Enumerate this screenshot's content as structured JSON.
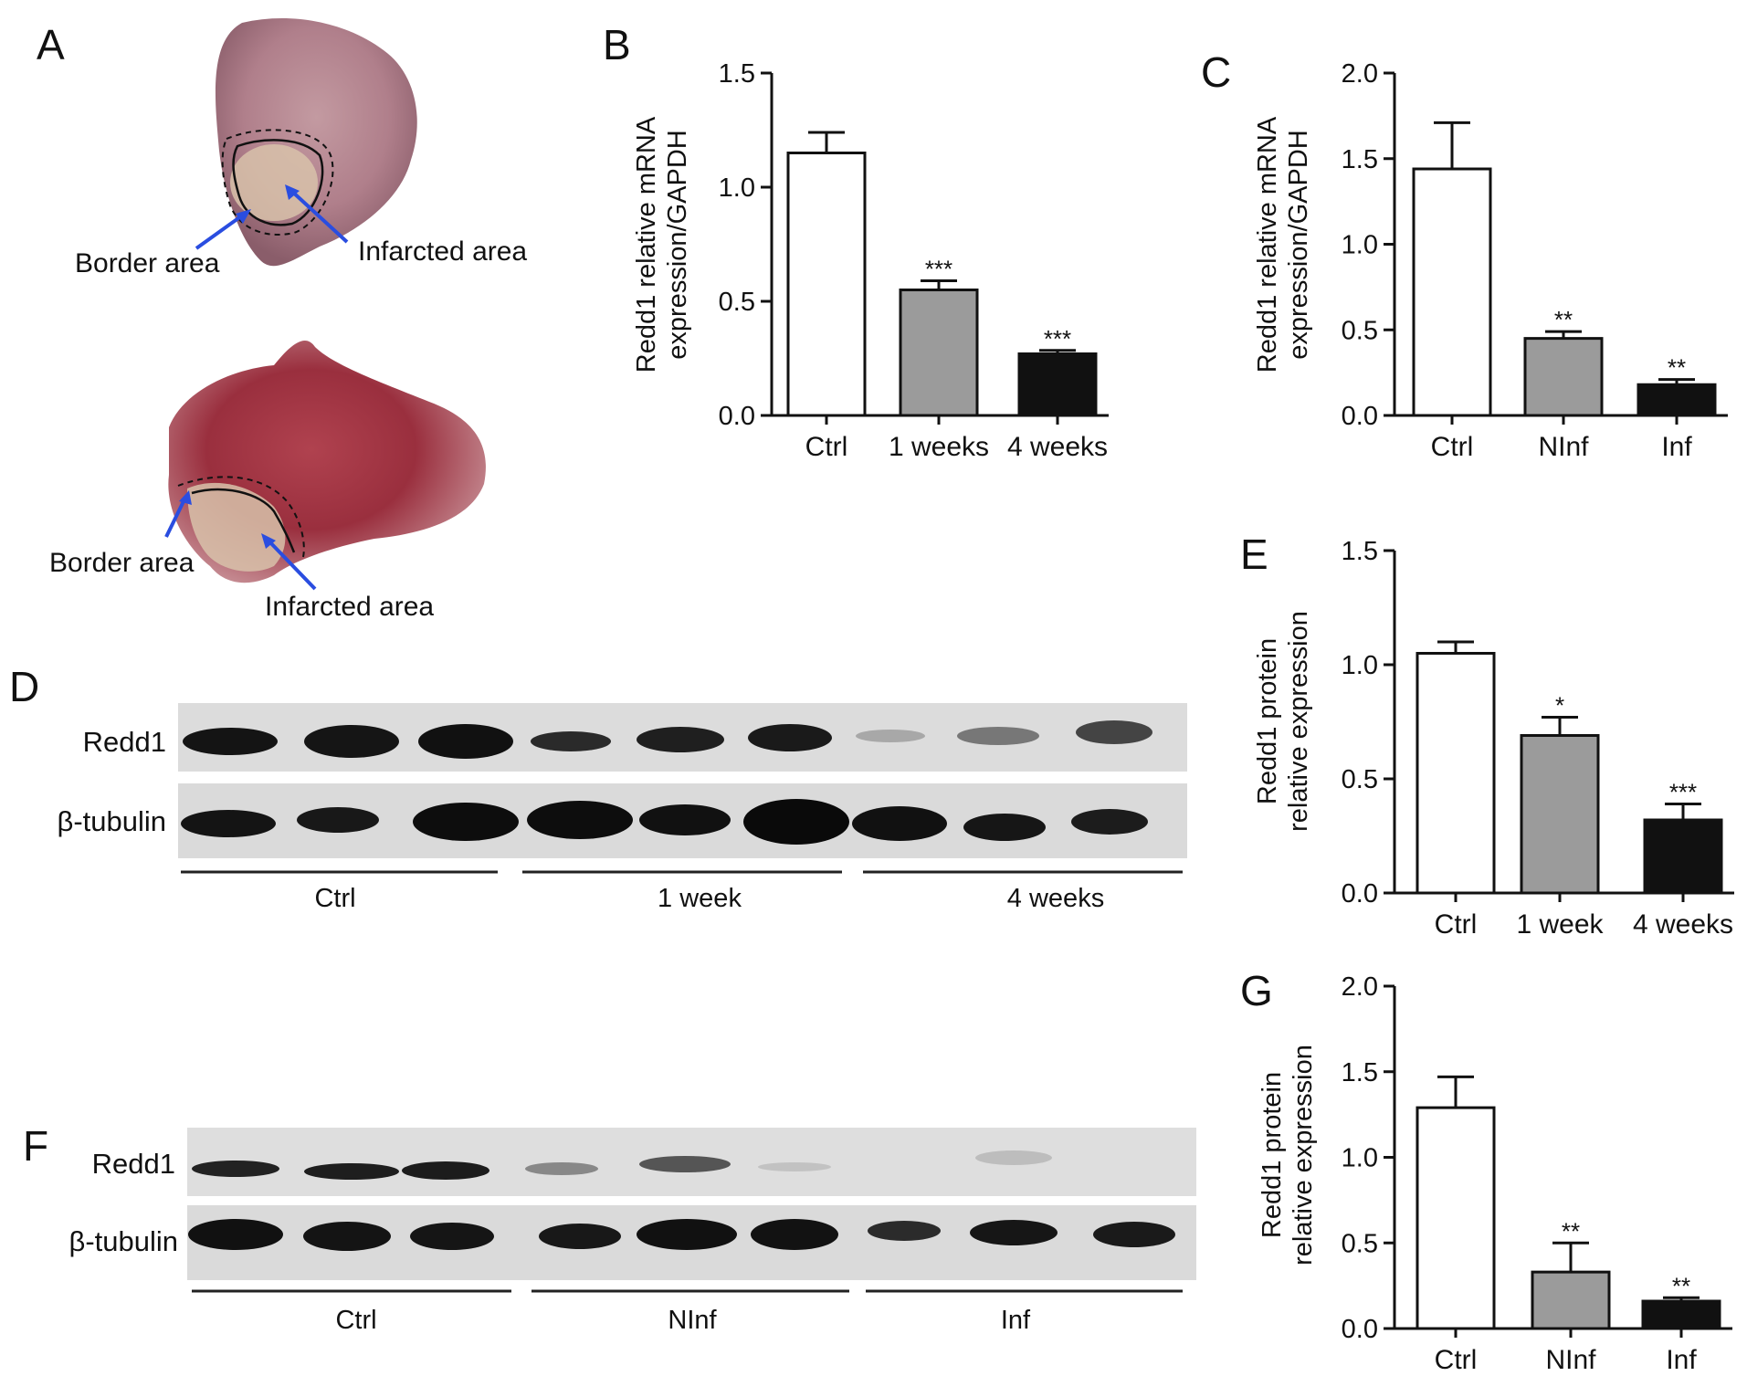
{
  "panel_a": {
    "panel_letter": "A",
    "top_labels": {
      "border": "Border area",
      "infarcted": "Infarcted area"
    },
    "bottom_labels": {
      "border": "Border area",
      "infarcted": "Infarcted area"
    },
    "arrow_color": "#2a4de0"
  },
  "panel_d": {
    "panel_letter": "D",
    "rows": [
      "Redd1",
      "β-tubulin"
    ],
    "groups": [
      "Ctrl",
      "1 week",
      "4 weeks"
    ]
  },
  "panel_f": {
    "panel_letter": "F",
    "rows": [
      "Redd1",
      "β-tubulin"
    ],
    "groups": [
      "Ctrl",
      "NInf",
      "Inf"
    ]
  },
  "colors": {
    "white_bar": "#ffffff",
    "gray_bar": "#9b9b9b",
    "black_bar": "#111111"
  },
  "chart_data": [
    {
      "id": "B",
      "panel_letter": "B",
      "type": "bar",
      "categories": [
        "Ctrl",
        "1 weeks",
        "4 weeks"
      ],
      "values": [
        1.15,
        0.55,
        0.27
      ],
      "errors": [
        0.09,
        0.04,
        0.015
      ],
      "significance": [
        "",
        "***",
        "***"
      ],
      "ylabel": "Redd1 relative mRNA\nexpression/GAPDH",
      "ylim": [
        0,
        1.5
      ],
      "yticks": [
        "0.0",
        "0.5",
        "1.0",
        "1.5"
      ],
      "grid": false
    },
    {
      "id": "C",
      "panel_letter": "C",
      "type": "bar",
      "categories": [
        "Ctrl",
        "NInf",
        "Inf"
      ],
      "values": [
        1.44,
        0.45,
        0.18
      ],
      "errors": [
        0.27,
        0.04,
        0.03
      ],
      "significance": [
        "",
        "**",
        "**"
      ],
      "ylabel": "Redd1 relative mRNA\nexpression/GAPDH",
      "ylim": [
        0,
        2.0
      ],
      "yticks": [
        "0.0",
        "0.5",
        "1.0",
        "1.5",
        "2.0"
      ],
      "grid": false
    },
    {
      "id": "E",
      "panel_letter": "E",
      "type": "bar",
      "categories": [
        "Ctrl",
        "1 week",
        "4 weeks"
      ],
      "values": [
        1.05,
        0.69,
        0.32
      ],
      "errors": [
        0.05,
        0.08,
        0.07
      ],
      "significance": [
        "",
        "*",
        "***"
      ],
      "ylabel": "Redd1 protein\nrelative expression",
      "ylim": [
        0,
        1.5
      ],
      "yticks": [
        "0.0",
        "0.5",
        "1.0",
        "1.5"
      ],
      "grid": false
    },
    {
      "id": "G",
      "panel_letter": "G",
      "type": "bar",
      "categories": [
        "Ctrl",
        "NInf",
        "Inf"
      ],
      "values": [
        1.29,
        0.33,
        0.16
      ],
      "errors": [
        0.18,
        0.17,
        0.02
      ],
      "significance": [
        "",
        "**",
        "**"
      ],
      "ylabel": "Redd1 protein\nrelative expression",
      "ylim": [
        0,
        2.0
      ],
      "yticks": [
        "0.0",
        "0.5",
        "1.0",
        "1.5",
        "2.0"
      ],
      "grid": false
    }
  ]
}
